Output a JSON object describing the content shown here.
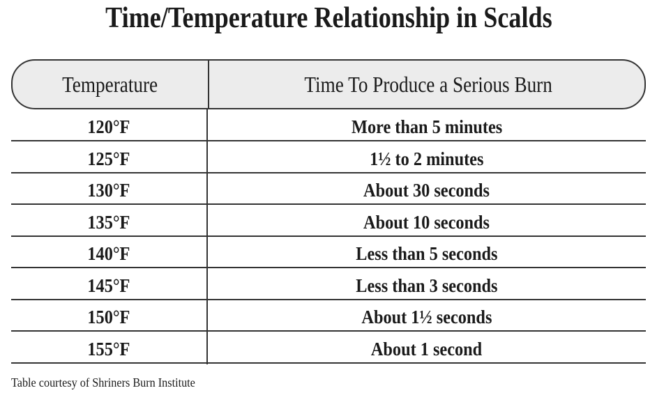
{
  "title": "Time/Temperature Relationship in Scalds",
  "table": {
    "headers": [
      "Temperature",
      "Time To Produce a Serious Burn"
    ],
    "rows": [
      [
        "120°F",
        "More than 5 minutes"
      ],
      [
        "125°F",
        "1½ to 2 minutes"
      ],
      [
        "130°F",
        "About 30 seconds"
      ],
      [
        "135°F",
        "About 10 seconds"
      ],
      [
        "140°F",
        "Less than 5 seconds"
      ],
      [
        "145°F",
        "Less than 3 seconds"
      ],
      [
        "150°F",
        "About 1½ seconds"
      ],
      [
        "155°F",
        "About 1 second"
      ]
    ]
  },
  "footnote": "Table courtesy of Shriners Burn Institute"
}
